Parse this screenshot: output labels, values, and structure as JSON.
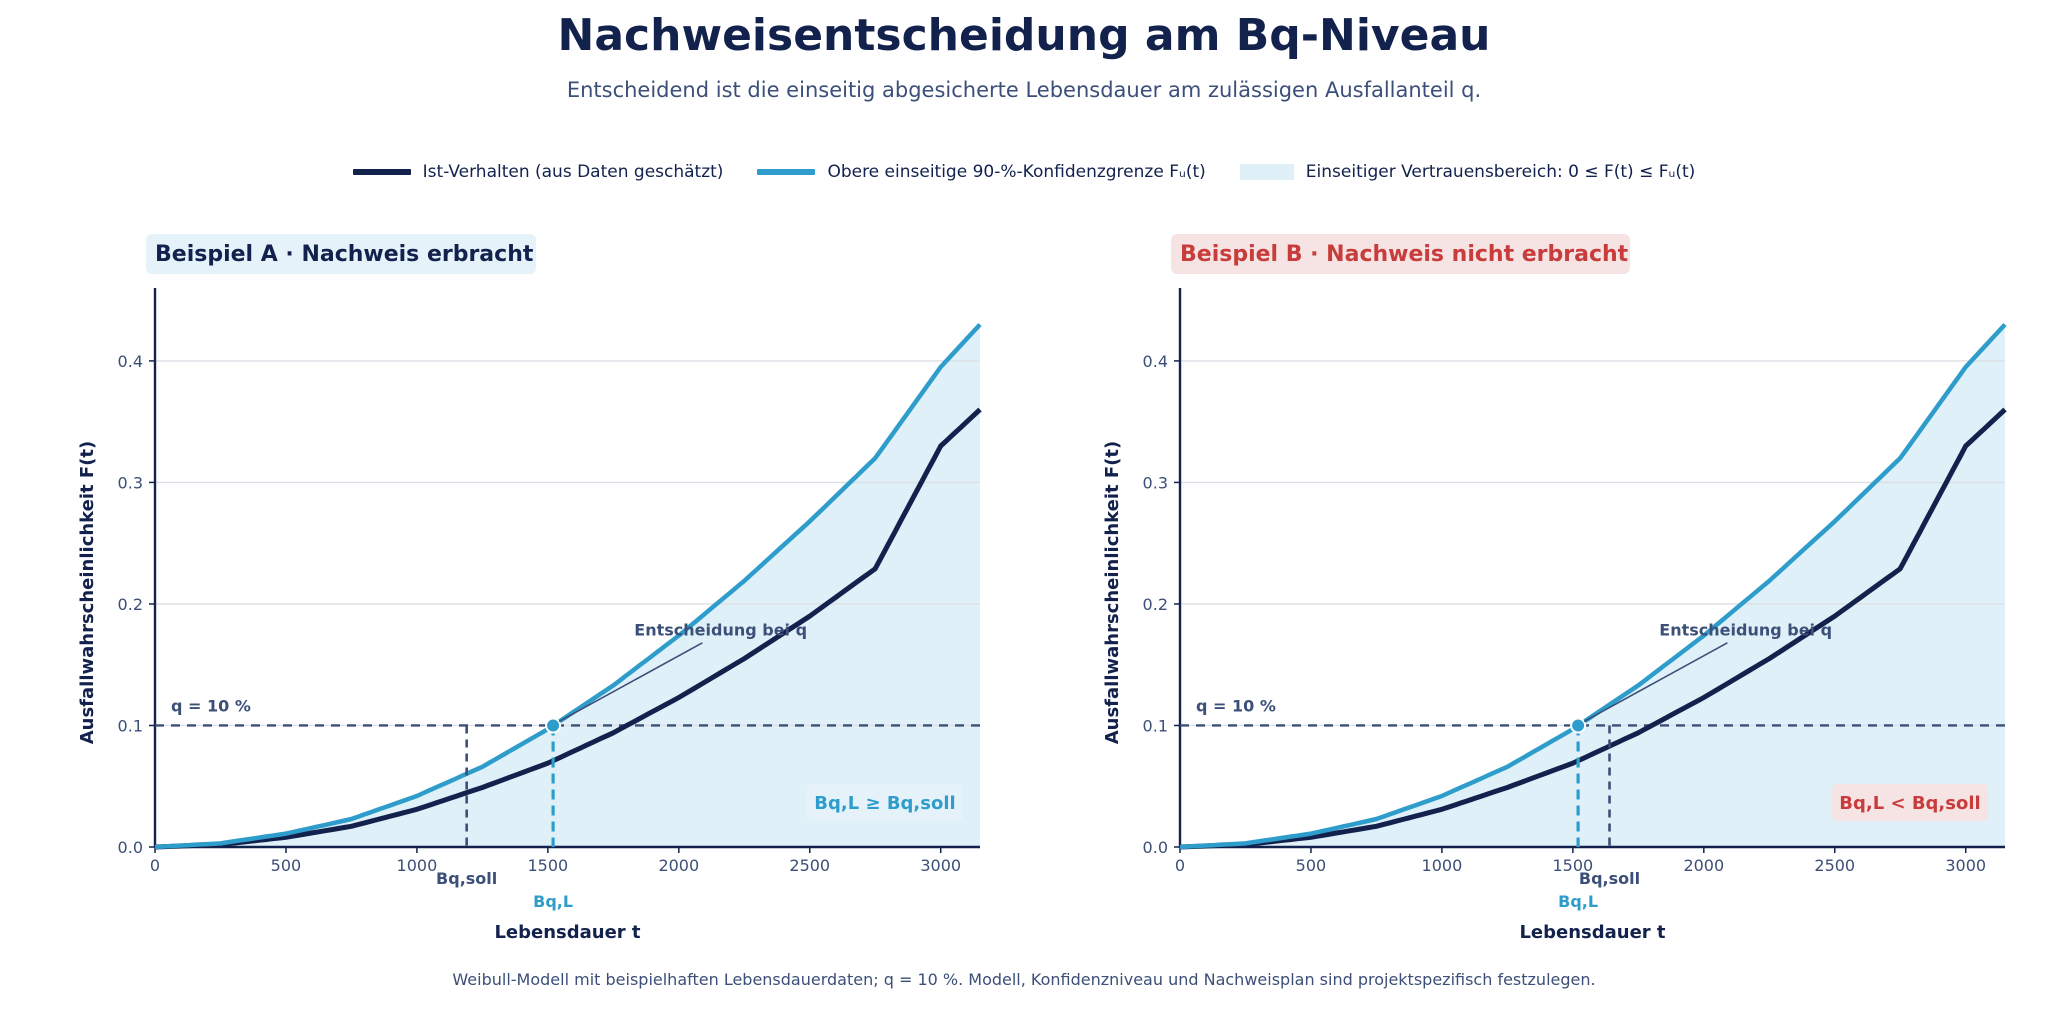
{
  "title": "Nachweisentscheidung am Bq-Niveau",
  "subtitle": "Entscheidend ist die einseitig abgesicherte Lebensdauer am zulässigen Ausfallanteil q.",
  "legend": [
    {
      "label": "Ist-Verhalten (aus Daten geschätzt)",
      "type": "line",
      "color": "#13224d"
    },
    {
      "label": "Obere einseitige 90-%-Konfidenzgrenze Fᵤ(t)",
      "type": "line",
      "color": "#2e9dcb"
    },
    {
      "label": "Einseitiger Vertrauensbereich: 0 ≤ F(t) ≤ Fᵤ(t)",
      "type": "band",
      "color": "#dff0f8"
    }
  ],
  "footnote": "Weibull-Modell mit beispielhaften Lebensdauerdaten; q = 10 %. Modell, Konfidenzniveau und Nachweisplan sind projektspezifisch festzulegen.",
  "colors": {
    "navy": "#13224d",
    "blue": "#2e9dcb",
    "band": "#dff0f8",
    "red": "#c83c3c",
    "grid": "#dcdfe5",
    "slate": "#3c4f78"
  },
  "chart_data": [
    {
      "type": "line",
      "title": "Beispiel A · Nachweis erbracht",
      "title_style": "success",
      "xlabel": "Lebensdauer t",
      "ylabel": "Ausfallwahrscheinlichkeit F(t)",
      "xlim": [
        0,
        3150
      ],
      "ylim": [
        0,
        0.46
      ],
      "xticks": [
        0,
        500,
        1000,
        1500,
        2000,
        2500,
        3000
      ],
      "yticks": [
        0.0,
        0.1,
        0.2,
        0.3,
        0.4
      ],
      "grid": "horizontal",
      "series": [
        {
          "name": "Ist-Verhalten (aus Daten geschätzt)",
          "x": [
            0,
            250,
            500,
            750,
            1000,
            1250,
            1500,
            1750,
            2000,
            2250,
            2500,
            2750,
            3000,
            3150
          ],
          "y": [
            0,
            0.002,
            0.008,
            0.017,
            0.031,
            0.049,
            0.069,
            0.094,
            0.123,
            0.155,
            0.19,
            0.229,
            0.33,
            0.36
          ]
        },
        {
          "name": "Obere einseitige 90-%-Konfidenzgrenze Fᵤ(t)",
          "x": [
            0,
            250,
            500,
            750,
            1000,
            1250,
            1500,
            1750,
            2000,
            2250,
            2500,
            2750,
            3000,
            3150
          ],
          "y": [
            0,
            0.003,
            0.011,
            0.023,
            0.042,
            0.066,
            0.097,
            0.133,
            0.174,
            0.219,
            0.268,
            0.32,
            0.395,
            0.43
          ]
        }
      ],
      "q_level": 0.1,
      "q_label": "q = 10 %",
      "bq_soll": 1190,
      "bq_soll_label": "Bq,soll",
      "bq_l": 1520,
      "bq_l_label": "Bq,L",
      "annotation": "Entscheidung bei q",
      "verdict": "Bq,L ≥ Bq,soll",
      "verdict_style": "success"
    },
    {
      "type": "line",
      "title": "Beispiel B · Nachweis nicht erbracht",
      "title_style": "fail",
      "xlabel": "Lebensdauer t",
      "ylabel": "Ausfallwahrscheinlichkeit F(t)",
      "xlim": [
        0,
        3150
      ],
      "ylim": [
        0,
        0.46
      ],
      "xticks": [
        0,
        500,
        1000,
        1500,
        2000,
        2500,
        3000
      ],
      "yticks": [
        0.0,
        0.1,
        0.2,
        0.3,
        0.4
      ],
      "grid": "horizontal",
      "series": [
        {
          "name": "Ist-Verhalten (aus Daten geschätzt)",
          "x": [
            0,
            250,
            500,
            750,
            1000,
            1250,
            1500,
            1750,
            2000,
            2250,
            2500,
            2750,
            3000,
            3150
          ],
          "y": [
            0,
            0.002,
            0.008,
            0.017,
            0.031,
            0.049,
            0.069,
            0.094,
            0.123,
            0.155,
            0.19,
            0.229,
            0.33,
            0.36
          ]
        },
        {
          "name": "Obere einseitige 90-%-Konfidenzgrenze Fᵤ(t)",
          "x": [
            0,
            250,
            500,
            750,
            1000,
            1250,
            1500,
            1750,
            2000,
            2250,
            2500,
            2750,
            3000,
            3150
          ],
          "y": [
            0,
            0.003,
            0.011,
            0.023,
            0.042,
            0.066,
            0.097,
            0.133,
            0.174,
            0.219,
            0.268,
            0.32,
            0.395,
            0.43
          ]
        }
      ],
      "q_level": 0.1,
      "q_label": "q = 10 %",
      "bq_soll": 1640,
      "bq_soll_label": "Bq,soll",
      "bq_l": 1520,
      "bq_l_label": "Bq,L",
      "annotation": "Entscheidung bei q",
      "verdict": "Bq,L < Bq,soll",
      "verdict_style": "fail"
    }
  ]
}
